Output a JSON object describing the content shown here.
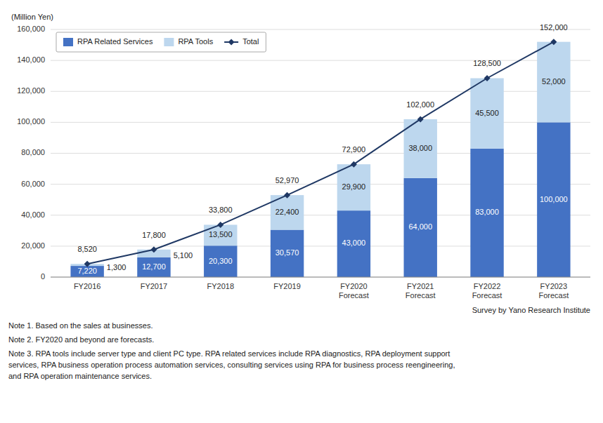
{
  "chart_data": {
    "type": "bar",
    "stacked": true,
    "categories": [
      "FY2016",
      "FY2017",
      "FY2018",
      "FY2019",
      "FY2020\nForecast",
      "FY2021\nForecast",
      "FY2022\nForecast",
      "FY2023\nForecast"
    ],
    "series": [
      {
        "name": "RPA Related Services",
        "type": "bar",
        "color": "#4472C4",
        "values": [
          7220,
          12700,
          20300,
          30570,
          43000,
          64000,
          83000,
          100000
        ],
        "value_labels": [
          "7,220",
          "12,700",
          "20,300",
          "30,570",
          "43,000",
          "64,000",
          "83,000",
          "100,000"
        ]
      },
      {
        "name": "RPA Tools",
        "type": "bar",
        "color": "#BDD7EE",
        "values": [
          1300,
          5100,
          13500,
          22400,
          29900,
          38000,
          45500,
          52000
        ],
        "value_labels": [
          "1,300",
          "5,100",
          "13,500",
          "22,400",
          "29,900",
          "38,000",
          "45,500",
          "52,000"
        ]
      },
      {
        "name": "Total",
        "type": "line",
        "color": "#1F3864",
        "marker": "diamond",
        "values": [
          8520,
          17800,
          33800,
          52970,
          72900,
          102000,
          128500,
          152000
        ],
        "value_labels": [
          "8,520",
          "17,800",
          "33,800",
          "52,970",
          "72,900",
          "102,000",
          "128,500",
          "152,000"
        ]
      }
    ],
    "data_labels": true,
    "ylabel": "(Million Yen)",
    "ylim": [
      0,
      160000
    ],
    "yticks": [
      0,
      {
        "value": 20000,
        "label": "20,000"
      },
      {
        "value": 40000,
        "label": "40,000"
      },
      {
        "value": 60000,
        "label": "60,000"
      },
      {
        "value": 80000,
        "label": "80,000"
      },
      {
        "value": 100000,
        "label": "100,000"
      },
      {
        "value": 120000,
        "label": "120,000"
      },
      {
        "value": 140000,
        "label": "140,000"
      },
      {
        "value": 160000,
        "label": "160,000"
      }
    ],
    "grid": true,
    "legend": "upper left",
    "annotations": [
      "Survey by Yano Research Institute",
      "Note 1.  Based on the sales at businesses.",
      "Note 2.  FY2020 and beyond are forecasts.",
      "Note 3.  RPA tools include server type and client PC type. RPA related services include RPA diagnostics, RPA deployment support\nservices, RPA business operation process automation services, consulting services using RPA for business process reengineering,\nand RPA operation maintenance services."
    ]
  }
}
